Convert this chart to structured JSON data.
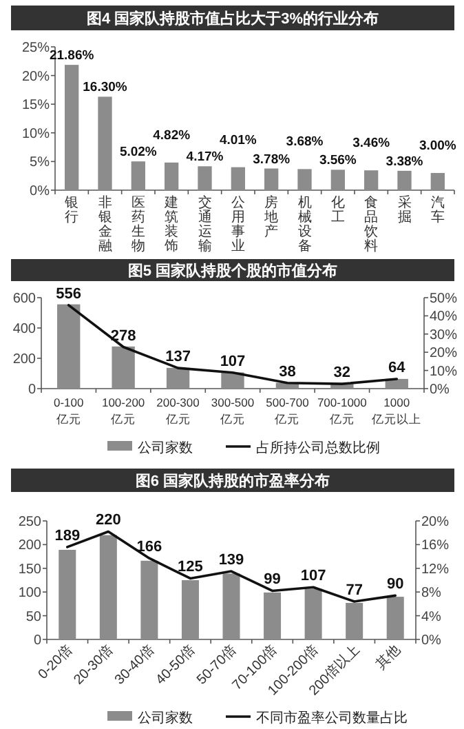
{
  "chart_data": [
    {
      "type": "bar",
      "title": "图4 国家队持股市值占比大于3%的行业分布",
      "categories": [
        "银行",
        "非银金融",
        "医药生物",
        "建筑装饰",
        "交通运输",
        "公用事业",
        "房地产",
        "机械设备",
        "化工",
        "食品饮料",
        "采掘",
        "汽车"
      ],
      "values": [
        21.86,
        16.3,
        5.02,
        4.82,
        4.17,
        4.01,
        3.78,
        3.68,
        3.56,
        3.46,
        3.38,
        3.0
      ],
      "value_labels": [
        "21.86%",
        "16.30%",
        "5.02%",
        "4.82%",
        "4.17%",
        "4.01%",
        "3.78%",
        "3.68%",
        "3.56%",
        "3.46%",
        "3.38%",
        "3.00%"
      ],
      "color": "#8c8c8c",
      "ylim": [
        0,
        25
      ],
      "yticks": [
        {
          "value": 0,
          "label": "0%"
        },
        {
          "value": 5,
          "label": "5%"
        },
        {
          "value": 10,
          "label": "10%"
        },
        {
          "value": 15,
          "label": "15%"
        },
        {
          "value": 20,
          "label": "20%"
        },
        {
          "value": 25,
          "label": "25%"
        }
      ]
    },
    {
      "type": "bar",
      "title": "图5 国家队持股个股的市值分布",
      "categories": [
        "0-100 亿元",
        "100-200 亿元",
        "200-300 亿元",
        "300-500 亿元",
        "500-700 亿元",
        "700-1000 亿元",
        "1000 亿元以上"
      ],
      "series": [
        {
          "name": "公司家数",
          "type": "bar",
          "color": "#8c8c8c",
          "values": [
            556,
            278,
            137,
            107,
            38,
            32,
            64
          ],
          "value_labels": [
            "556",
            "278",
            "137",
            "107",
            "38",
            "32",
            "64"
          ]
        },
        {
          "name": "占所持公司总数比例",
          "type": "line",
          "axis": "y2",
          "color": "#111111",
          "values": [
            45.9,
            22.9,
            11.3,
            8.8,
            3.1,
            2.6,
            5.3
          ]
        }
      ],
      "ylim": [
        0,
        600
      ],
      "yticks": [
        0,
        200,
        400,
        600
      ],
      "y2lim": [
        0,
        50
      ],
      "y2ticks": [
        {
          "value": 0,
          "label": "0%"
        },
        {
          "value": 10,
          "label": "10%"
        },
        {
          "value": 20,
          "label": "20%"
        },
        {
          "value": 30,
          "label": "30%"
        },
        {
          "value": 40,
          "label": "40%"
        },
        {
          "value": 50,
          "label": "50%"
        }
      ],
      "legend": "bottom"
    },
    {
      "type": "bar",
      "title": "图6 国家队持股的市盈率分布",
      "categories": [
        "0-20倍",
        "20-30倍",
        "30-40倍",
        "40-50倍",
        "50-70倍",
        "70-100倍",
        "100-200倍",
        "200倍以上",
        "其他"
      ],
      "series": [
        {
          "name": "公司家数",
          "type": "bar",
          "color": "#8c8c8c",
          "values": [
            189,
            220,
            166,
            125,
            139,
            99,
            107,
            77,
            90
          ],
          "value_labels": [
            "189",
            "220",
            "166",
            "125",
            "139",
            "99",
            "107",
            "77",
            "90"
          ]
        },
        {
          "name": "不同市盈率公司数量占比",
          "type": "line",
          "axis": "y2",
          "color": "#111111",
          "values": [
            15.6,
            18.2,
            13.7,
            10.3,
            11.5,
            8.2,
            8.8,
            6.4,
            7.4
          ]
        }
      ],
      "ylim": [
        0,
        250
      ],
      "yticks": [
        0,
        50,
        100,
        150,
        200,
        250
      ],
      "y2lim": [
        0,
        20
      ],
      "y2ticks": [
        {
          "value": 0,
          "label": "0%"
        },
        {
          "value": 4,
          "label": "4%"
        },
        {
          "value": 8,
          "label": "8%"
        },
        {
          "value": 12,
          "label": "12%"
        },
        {
          "value": 16,
          "label": "16%"
        },
        {
          "value": 20,
          "label": "20%"
        }
      ],
      "legend": "bottom"
    }
  ]
}
